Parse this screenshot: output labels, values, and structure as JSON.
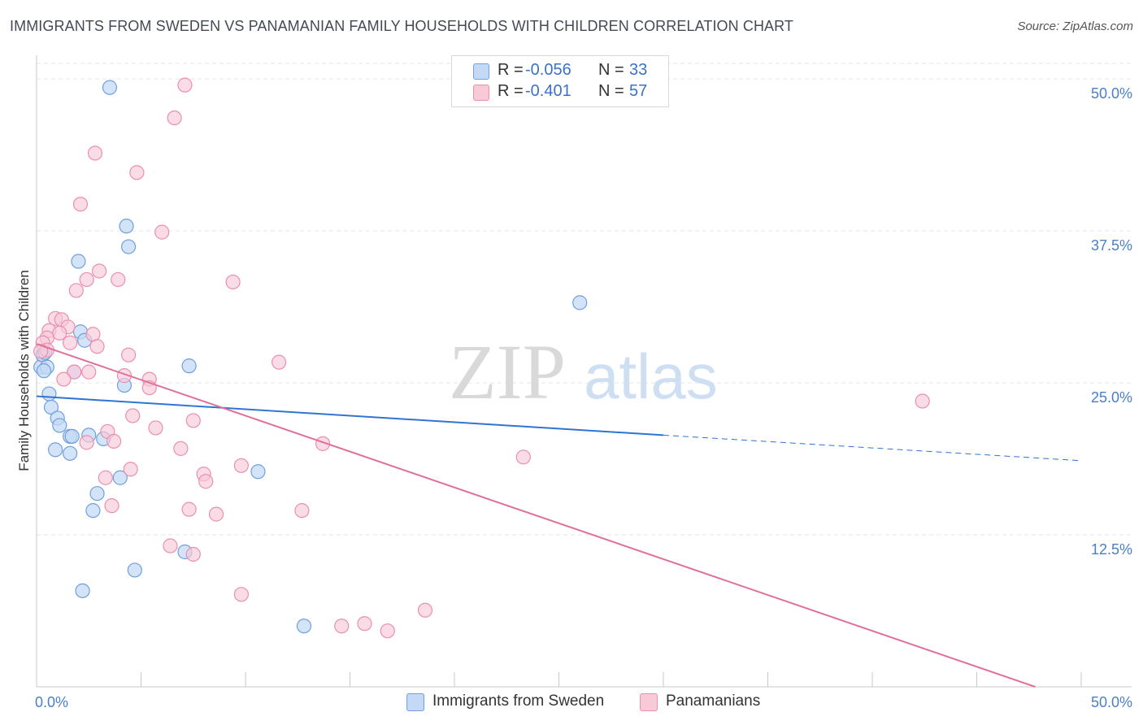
{
  "title": "IMMIGRANTS FROM SWEDEN VS PANAMANIAN FAMILY HOUSEHOLDS WITH CHILDREN CORRELATION CHART",
  "source": "Source: ZipAtlas.com",
  "watermark": {
    "zip": "ZIP",
    "atlas": "atlas"
  },
  "legend": {
    "rows": [
      {
        "r_label": "R =",
        "r_value": "-0.056",
        "n_label": "N =",
        "n_value": "33"
      },
      {
        "r_label": "R =",
        "r_value": "-0.401",
        "n_label": "N =",
        "n_value": "57"
      }
    ]
  },
  "bottom_legend": {
    "series1": "Immigrants from Sweden",
    "series2": "Panamanians"
  },
  "colors": {
    "blue_fill": "#c4d9f5",
    "blue_stroke": "#6fa0dc",
    "blue_line": "#2f74d0",
    "pink_fill": "#f8cad8",
    "pink_stroke": "#eb8fae",
    "pink_line": "#e0709a",
    "tick": "#4a7fc8",
    "grid": "#e6e6e6"
  },
  "chart_data": {
    "type": "scatter",
    "title": "IMMIGRANTS FROM SWEDEN VS PANAMANIAN FAMILY HOUSEHOLDS WITH CHILDREN CORRELATION CHART",
    "xlabel": "",
    "ylabel": "Family Households with Children",
    "xlim": [
      0,
      50
    ],
    "ylim": [
      0,
      50
    ],
    "x_tick_labels": [
      "0.0%",
      "50.0%"
    ],
    "y_ticks": [
      12.5,
      25.0,
      37.5,
      50.0
    ],
    "y_tick_labels": [
      "12.5%",
      "25.0%",
      "37.5%",
      "50.0%"
    ],
    "series": [
      {
        "name": "Immigrants from Sweden",
        "R": -0.056,
        "N": 33,
        "trend": {
          "x0": 0,
          "y0": 23.9,
          "x1": 30,
          "y1": 20.7,
          "dashed_to_x": 50,
          "dashed_to_y": 18.6
        },
        "points": [
          [
            3.5,
            49.3
          ],
          [
            0.2,
            26.3
          ],
          [
            0.3,
            27.3
          ],
          [
            0.5,
            26.3
          ],
          [
            0.6,
            24.1
          ],
          [
            0.7,
            23.0
          ],
          [
            1.0,
            22.1
          ],
          [
            1.1,
            21.5
          ],
          [
            1.6,
            20.6
          ],
          [
            1.7,
            20.6
          ],
          [
            0.9,
            19.5
          ],
          [
            1.6,
            19.2
          ],
          [
            2.0,
            35.0
          ],
          [
            2.1,
            29.2
          ],
          [
            2.3,
            28.5
          ],
          [
            1.8,
            25.9
          ],
          [
            4.3,
            37.9
          ],
          [
            4.4,
            36.2
          ],
          [
            4.2,
            24.8
          ],
          [
            2.5,
            20.7
          ],
          [
            3.2,
            20.4
          ],
          [
            4.0,
            17.2
          ],
          [
            2.9,
            15.9
          ],
          [
            2.7,
            14.5
          ],
          [
            7.3,
            26.4
          ],
          [
            4.7,
            9.6
          ],
          [
            7.1,
            11.1
          ],
          [
            2.2,
            7.9
          ],
          [
            10.6,
            17.7
          ],
          [
            12.8,
            5.0
          ],
          [
            26.0,
            31.6
          ],
          [
            0.4,
            27.5
          ],
          [
            0.35,
            26.0
          ]
        ]
      },
      {
        "name": "Panamanians",
        "R": -0.401,
        "N": 57,
        "trend": {
          "x0": 0,
          "y0": 28.2,
          "x1": 47.8,
          "y1": 0
        },
        "points": [
          [
            7.1,
            49.5
          ],
          [
            6.6,
            46.8
          ],
          [
            2.8,
            43.9
          ],
          [
            4.8,
            42.3
          ],
          [
            2.1,
            39.7
          ],
          [
            6.0,
            37.4
          ],
          [
            3.0,
            34.2
          ],
          [
            2.4,
            33.5
          ],
          [
            3.9,
            33.5
          ],
          [
            9.4,
            33.3
          ],
          [
            1.9,
            32.6
          ],
          [
            0.9,
            30.3
          ],
          [
            1.2,
            30.2
          ],
          [
            1.5,
            29.6
          ],
          [
            0.6,
            29.3
          ],
          [
            1.1,
            29.1
          ],
          [
            2.7,
            29.0
          ],
          [
            0.5,
            28.7
          ],
          [
            0.3,
            28.3
          ],
          [
            1.6,
            28.3
          ],
          [
            0.5,
            27.7
          ],
          [
            2.9,
            28.0
          ],
          [
            4.4,
            27.3
          ],
          [
            11.6,
            26.7
          ],
          [
            1.8,
            25.9
          ],
          [
            2.5,
            25.9
          ],
          [
            4.2,
            25.6
          ],
          [
            5.4,
            25.3
          ],
          [
            1.3,
            25.3
          ],
          [
            5.4,
            24.6
          ],
          [
            4.6,
            22.3
          ],
          [
            7.5,
            21.9
          ],
          [
            5.7,
            21.3
          ],
          [
            3.4,
            21.0
          ],
          [
            2.4,
            20.1
          ],
          [
            3.7,
            20.2
          ],
          [
            13.7,
            20.0
          ],
          [
            6.9,
            19.6
          ],
          [
            23.3,
            18.9
          ],
          [
            9.8,
            18.2
          ],
          [
            4.5,
            17.9
          ],
          [
            8.0,
            17.5
          ],
          [
            3.3,
            17.2
          ],
          [
            8.1,
            16.9
          ],
          [
            3.6,
            14.9
          ],
          [
            7.3,
            14.6
          ],
          [
            8.6,
            14.2
          ],
          [
            12.7,
            14.5
          ],
          [
            6.4,
            11.6
          ],
          [
            7.5,
            10.9
          ],
          [
            9.8,
            7.6
          ],
          [
            14.6,
            5.0
          ],
          [
            15.7,
            5.2
          ],
          [
            16.8,
            4.6
          ],
          [
            18.6,
            6.3
          ],
          [
            42.4,
            23.5
          ],
          [
            0.2,
            27.6
          ]
        ]
      }
    ]
  }
}
